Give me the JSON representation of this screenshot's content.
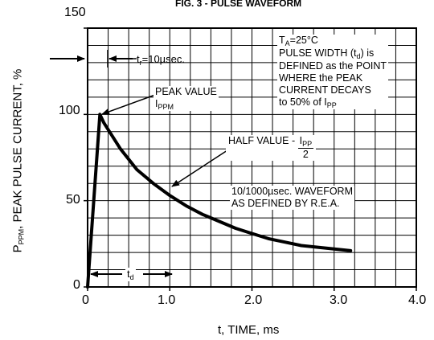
{
  "chart_data": {
    "type": "line",
    "title": "FIG. 3 - PULSE WAVEFORM",
    "xlabel": "t, TIME, ms",
    "ylabel_main": "P",
    "ylabel_sub": "PPM",
    "ylabel_rest": ", PEAK PULSE CURRENT, %",
    "xlim": [
      0,
      4.0
    ],
    "ylim": [
      0,
      150
    ],
    "x_ticks": [
      "0",
      "1.0",
      "2.0",
      "3.0",
      "4.0"
    ],
    "y_ticks": [
      "0",
      "50",
      "100",
      "150"
    ],
    "grid": true,
    "series": [
      {
        "x": [
          0,
          0.15,
          0.2,
          0.4,
          0.6,
          0.8,
          1.0,
          1.2,
          1.4,
          1.6,
          1.8,
          2.0,
          2.2,
          2.4,
          2.6,
          2.8,
          3.0,
          3.2
        ],
        "y": [
          0,
          100,
          95,
          80,
          68,
          60,
          53,
          47,
          42,
          38,
          34,
          31,
          28,
          26,
          24,
          23,
          22,
          21
        ]
      }
    ],
    "annotations": {
      "tr_pre": "t",
      "tr_sub": "r",
      "tr_post": "=10µsec.",
      "ta_pre": "T",
      "ta_sub": "A",
      "ta_post": "=25°C",
      "pw_line1_pre": "PULSE WIDTH (t",
      "pw_line1_sub": "d",
      "pw_line1_post": ") is",
      "pw_line2": "DEFINED as the POINT",
      "pw_line3": "WHERE the PEAK",
      "pw_line4": "CURRENT DECAYS",
      "pw_line5_pre": "to 50% of I",
      "pw_line5_sub": "PP",
      "peak_line1": "PEAK VALUE",
      "peak_line2_pre": "I",
      "peak_line2_sub": "PPM",
      "half_pre": "HALF VALUE - ",
      "half_num": "I",
      "half_num_sub": "PP",
      "half_den": "2",
      "wave_line1": "10/1000µsec. WAVEFORM",
      "wave_line2": "AS DEFINED BY R.E.A.",
      "td_pre": "t",
      "td_sub": "d"
    }
  }
}
